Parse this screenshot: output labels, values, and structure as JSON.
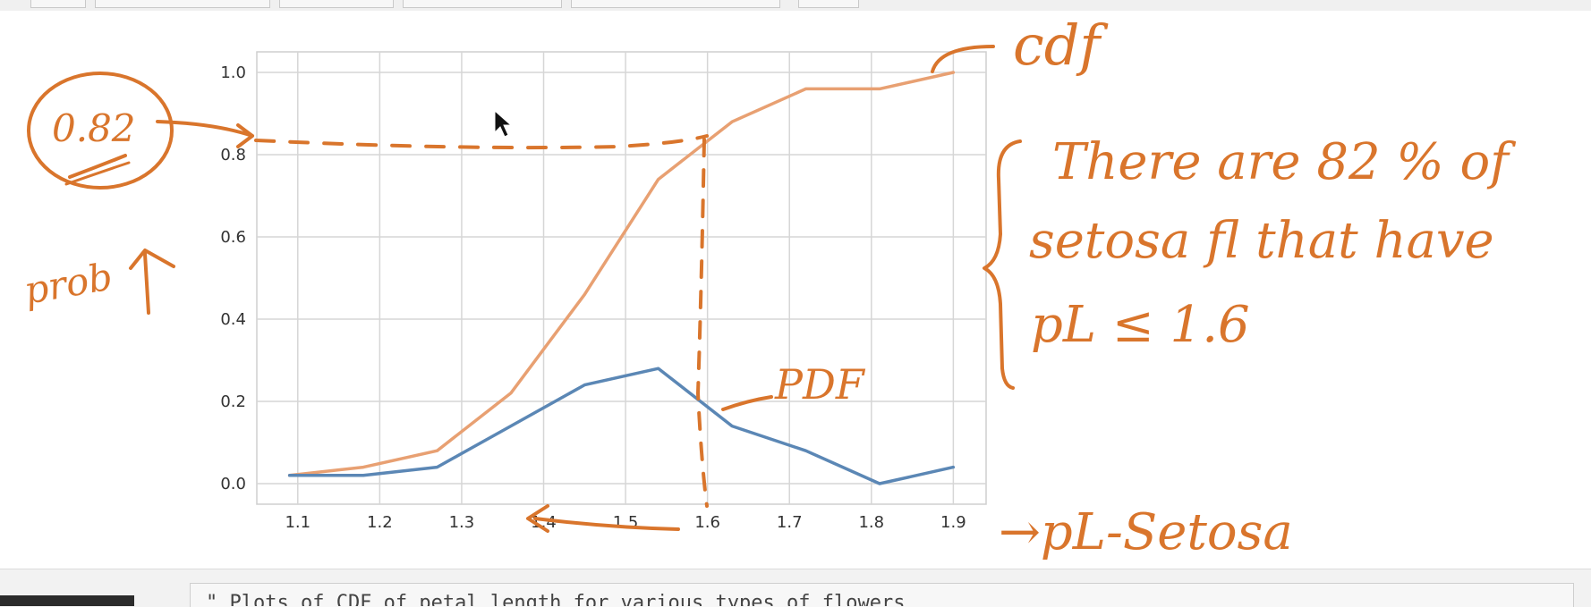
{
  "colors": {
    "cdf": "#e8a072",
    "pdf": "#5b87b5",
    "ink": "#d9752c",
    "grid": "#d6d6d6"
  },
  "chart_data": {
    "type": "line",
    "x": [
      1.09,
      1.18,
      1.27,
      1.36,
      1.45,
      1.54,
      1.63,
      1.72,
      1.81,
      1.9
    ],
    "series": [
      {
        "name": "cdf",
        "values": [
          0.02,
          0.04,
          0.08,
          0.22,
          0.46,
          0.74,
          0.88,
          0.96,
          0.96,
          1.0
        ]
      },
      {
        "name": "pdf",
        "values": [
          0.02,
          0.02,
          0.04,
          0.14,
          0.24,
          0.28,
          0.14,
          0.08,
          0.0,
          0.04
        ]
      }
    ],
    "xticks": [
      "1.1",
      "1.2",
      "1.3",
      "1.4",
      "1.5",
      "1.6",
      "1.7",
      "1.8",
      "1.9"
    ],
    "yticks": [
      "0.0",
      "0.2",
      "0.4",
      "0.6",
      "0.8",
      "1.0"
    ],
    "xlim": [
      1.05,
      1.94
    ],
    "ylim": [
      -0.05,
      1.05
    ],
    "grid": true,
    "title": "",
    "xlabel": "",
    "ylabel": ""
  },
  "annotations": {
    "cdf_label": "cdf",
    "pdf_label": "PDF",
    "prob_label": "prob",
    "value_circle": "0.82",
    "note_line1": "There are 82 % of",
    "note_line2": "setosa fl that have",
    "note_line3": "pL ≤ 1.6",
    "xaxis_note": "→pL-Setosa"
  },
  "next_cell": {
    "code_text": "\" Plots of CDF of petal length for various types of flowers"
  }
}
